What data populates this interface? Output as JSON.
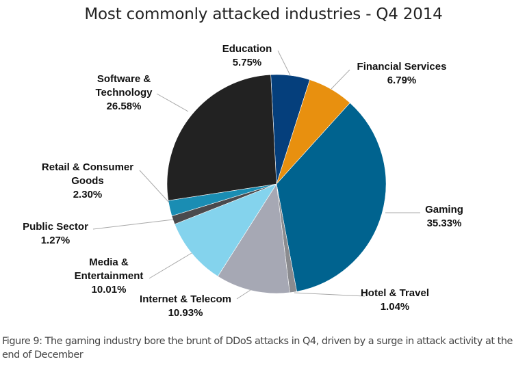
{
  "chart_data": {
    "type": "pie",
    "title": "Most commonly attacked industries - Q4 2014",
    "unit": "%",
    "start_angle_deg": -3,
    "direction": "clockwise",
    "slices": [
      {
        "label": [
          "Education"
        ],
        "value": 5.75,
        "value_label": "5.75%",
        "color": "#053f7c"
      },
      {
        "label": [
          "Financial Services"
        ],
        "value": 6.79,
        "value_label": "6.79%",
        "color": "#e8900f"
      },
      {
        "label": [
          "Gaming"
        ],
        "value": 35.33,
        "value_label": "35.33%",
        "color": "#00638f"
      },
      {
        "label": [
          "Hotel & Travel"
        ],
        "value": 1.04,
        "value_label": "1.04%",
        "color": "#8a8b8f"
      },
      {
        "label": [
          "Internet & Telecom"
        ],
        "value": 10.93,
        "value_label": "10.93%",
        "color": "#a6a8b4"
      },
      {
        "label": [
          "Media &",
          "Entertainment"
        ],
        "value": 10.01,
        "value_label": "10.01%",
        "color": "#84d3ed"
      },
      {
        "label": [
          "Public Sector"
        ],
        "value": 1.27,
        "value_label": "1.27%",
        "color": "#4a4a4d"
      },
      {
        "label": [
          "Retail & Consumer",
          "Goods"
        ],
        "value": 2.3,
        "value_label": "2.30%",
        "color": "#1a8db3"
      },
      {
        "label": [
          "Software &",
          "Technology"
        ],
        "value": 26.58,
        "value_label": "26.58%",
        "color": "#222222"
      }
    ]
  },
  "caption": "Figure 9: The gaming industry bore the brunt of DDoS attacks in Q4, driven by a surge in attack activity at the end of December"
}
